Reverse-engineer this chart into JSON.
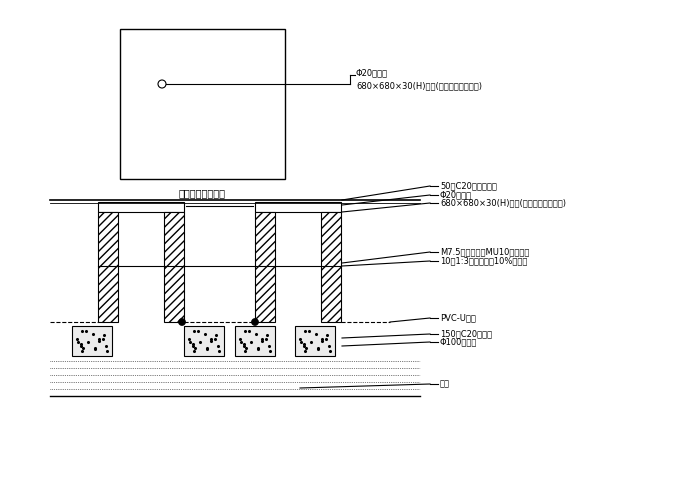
{
  "bg_color": "#ffffff",
  "line_color": "#000000",
  "title_top": "接线手孔井剪面图",
  "annotations": {
    "top_view": [
      [
        "Φ20检修孔",
        0
      ],
      [
        "680×680×30(H)盖板(参阅园建井盖做法)",
        1
      ]
    ],
    "section_top": [
      [
        "50厜C20混凝土边框",
        0
      ],
      [
        "Φ20检修孔",
        1
      ],
      [
        "680×680×30(H)盖板(参阅园建井盖做法)",
        2
      ]
    ],
    "section_mid": [
      [
        "M7.5水泥沙浆、MU10机砖牀砖",
        0
      ],
      [
        "10厜1:3水泥沙浆掅10%防水筂",
        1
      ]
    ],
    "section_bot": [
      [
        "PVC-U线管",
        0
      ],
      [
        "150厜C20混凝土",
        1
      ],
      [
        "Φ100渗水孔",
        2
      ],
      [
        "粗沙",
        3
      ]
    ]
  }
}
